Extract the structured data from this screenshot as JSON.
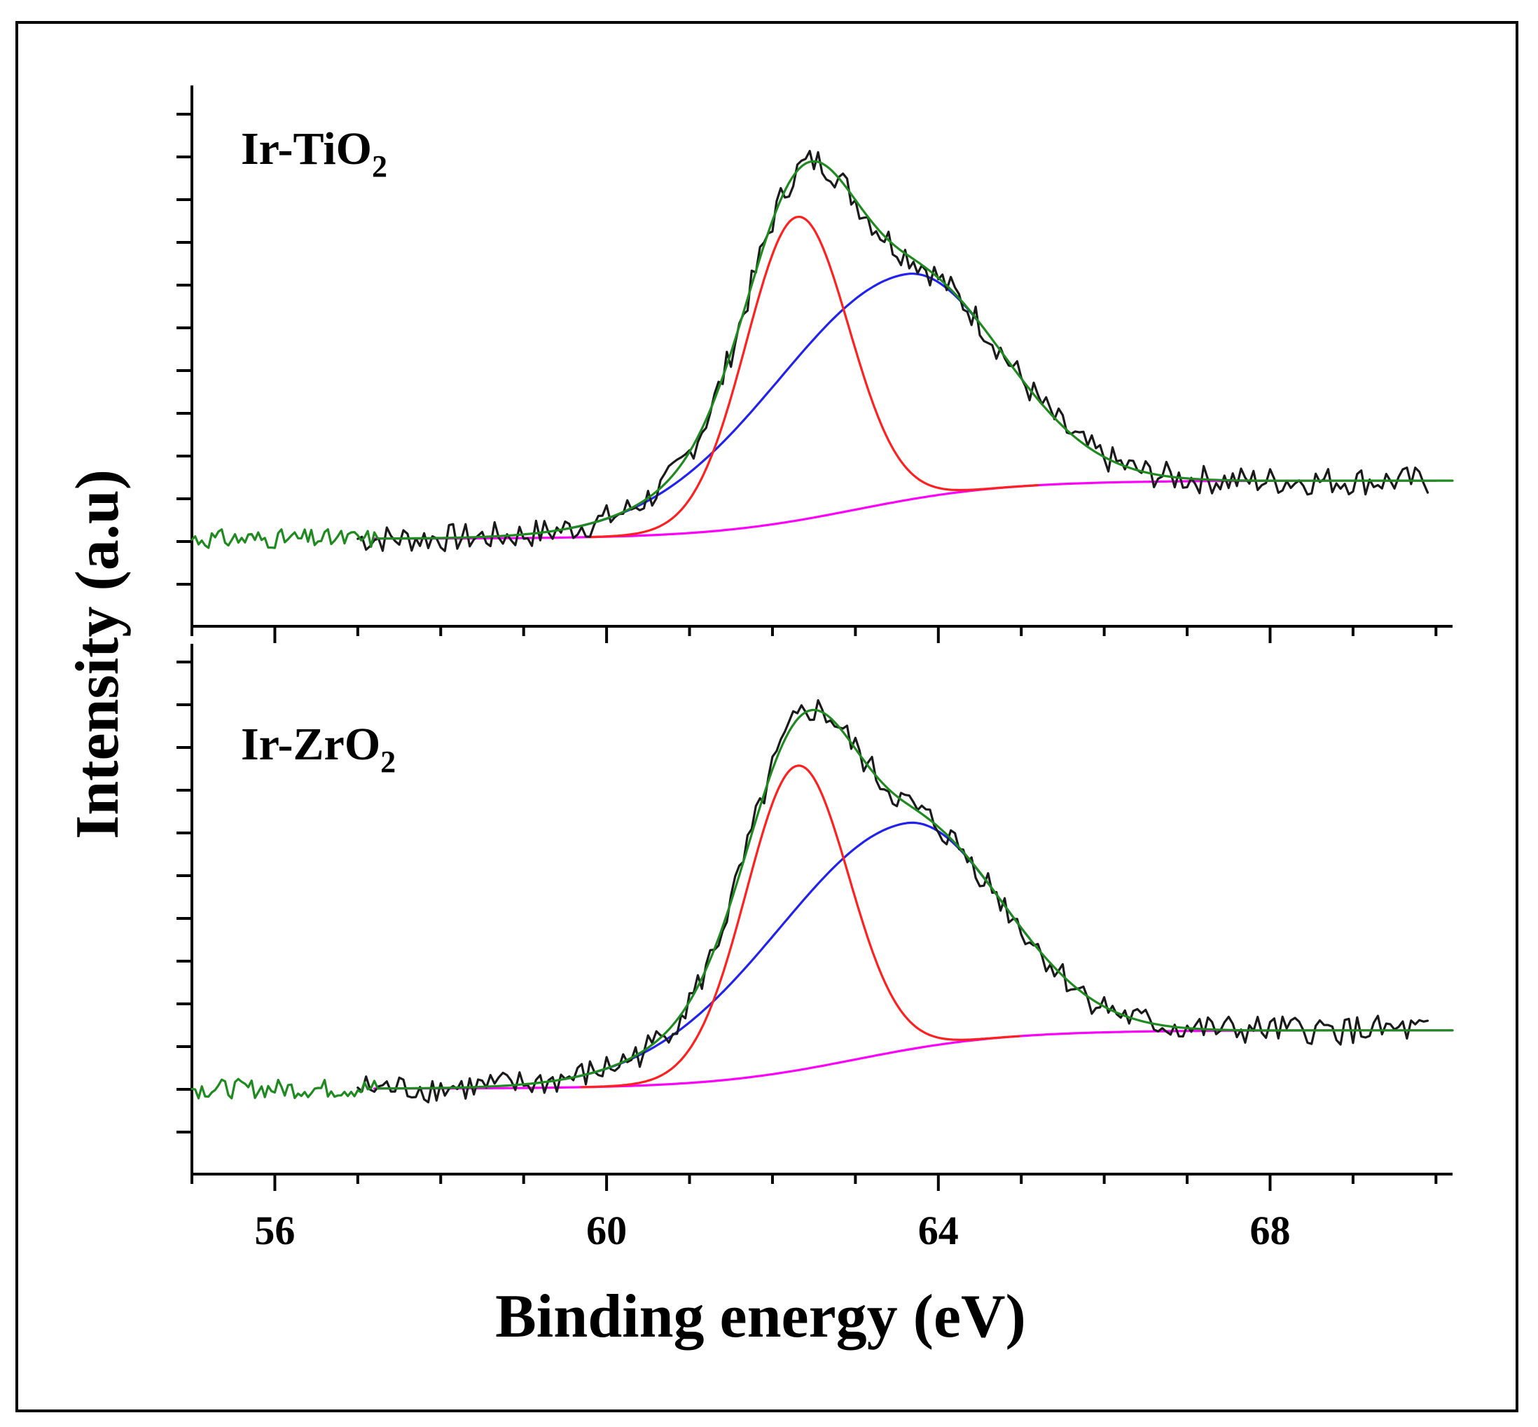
{
  "chart_data": {
    "type": "line",
    "xlabel": "Binding energy  (eV)",
    "ylabel": "Intensity (a.u)",
    "x_ticks": [
      "56",
      "60",
      "64",
      "68"
    ],
    "xlim": [
      55,
      70.2
    ],
    "grid": false,
    "colors": {
      "raw": "#1a1a1a",
      "envelope": "#1f8a1f",
      "peak1": "#ff2020",
      "peak2": "#2222ee",
      "background": "#ff00ff"
    },
    "panels": [
      {
        "label": "Ir-TiO",
        "label_sub": "2",
        "peak1": {
          "center": 62.3,
          "height": 1.0,
          "sigma": 0.62,
          "x_start": 59.8,
          "x_end": 65.2
        },
        "peak2": {
          "center": 63.6,
          "height": 0.7,
          "sigma_left": 1.6,
          "sigma_right": 1.15,
          "x_start": 59.5,
          "x_end": 64.5
        },
        "background": {
          "low": 0.0,
          "high": 0.18,
          "step_center": 63.0,
          "x_start": 57.2,
          "x_end": 70.0
        },
        "envelope_x_range": [
          55.0,
          70.2
        ],
        "raw_x_range": [
          57.0,
          69.9
        ]
      },
      {
        "label": "Ir-ZrO",
        "label_sub": "2",
        "peak1": {
          "center": 62.3,
          "height": 1.0,
          "sigma": 0.62,
          "x_start": 59.7,
          "x_end": 65.0
        },
        "peak2": {
          "center": 63.6,
          "height": 0.7,
          "sigma_left": 1.6,
          "sigma_right": 1.15,
          "x_start": 59.5,
          "x_end": 65.1
        },
        "background": {
          "low": 0.0,
          "high": 0.18,
          "step_center": 63.0,
          "x_start": 57.2,
          "x_end": 70.2
        },
        "envelope_x_range": [
          55.0,
          70.2
        ],
        "raw_x_range": [
          57.0,
          69.9
        ]
      }
    ]
  }
}
